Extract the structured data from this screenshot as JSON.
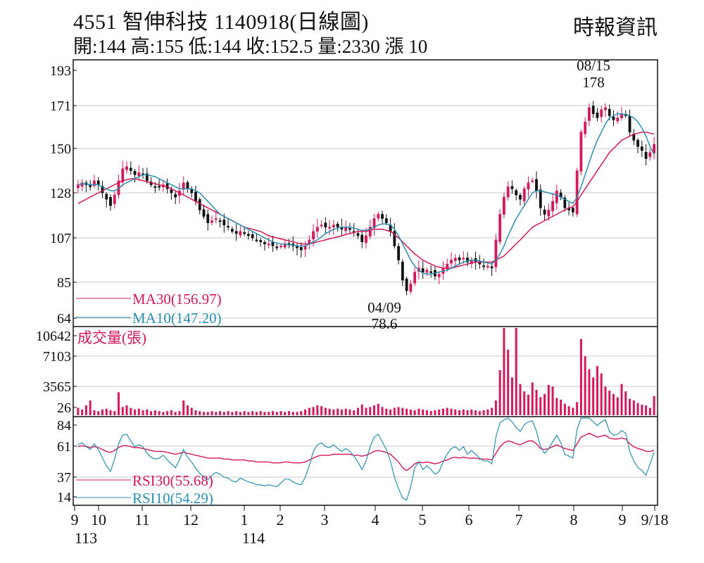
{
  "header": {
    "title": "4551  智伸科技 1140918(日線圖)",
    "info": "開:144 高:155 低:144 收:152.5 量:2330 漲 10",
    "source": "時報資訊"
  },
  "colors": {
    "up": "#d6185a",
    "down": "#111111",
    "ma30": "#d6185a",
    "ma10": "#2a8fb0",
    "volume": "#d6185a",
    "grid": "#c8c8c8"
  },
  "chart_data": [
    {
      "type": "candlestick",
      "yticks": [
        "193",
        "171",
        "150",
        "128",
        "107",
        "85",
        "64"
      ],
      "ylim": [
        64,
        193
      ],
      "legend": [
        {
          "name": "MA30(156.97)",
          "color": "#d6185a"
        },
        {
          "name": "MA10(147.20)",
          "color": "#2a8fb0"
        }
      ],
      "annotations": [
        {
          "date": "08/15",
          "value": "178"
        },
        {
          "date": "04/09",
          "value": "78.6"
        }
      ],
      "close_approx": [
        132,
        133,
        132,
        131,
        134,
        132,
        128,
        125,
        122,
        127,
        134,
        140,
        141,
        139,
        137,
        138,
        137,
        134,
        132,
        131,
        131,
        132,
        130,
        128,
        126,
        129,
        133,
        130,
        128,
        124,
        120,
        117,
        114,
        115,
        116,
        115,
        113,
        112,
        110,
        109,
        110,
        109,
        108,
        107,
        106,
        105,
        104,
        104,
        103,
        102,
        103,
        104,
        104,
        103,
        102,
        101,
        103,
        106,
        110,
        112,
        113,
        112,
        112,
        113,
        112,
        111,
        112,
        111,
        110,
        108,
        105,
        108,
        112,
        116,
        118,
        116,
        114,
        110,
        103,
        96,
        86,
        80,
        84,
        90,
        92,
        90,
        91,
        90,
        88,
        89,
        92,
        94,
        96,
        97,
        96,
        97,
        95,
        96,
        95,
        94,
        93,
        93,
        92,
        106,
        118,
        126,
        131,
        130,
        127,
        125,
        130,
        133,
        134,
        129,
        121,
        118,
        120,
        124,
        129,
        126,
        121,
        120,
        119,
        139,
        158,
        163,
        170,
        167,
        165,
        169,
        170,
        166,
        164,
        165,
        167,
        166,
        158,
        154,
        151,
        149,
        145,
        148,
        152
      ],
      "ma30_approx": [
        123,
        124,
        125,
        126,
        127,
        128,
        129,
        130,
        131,
        132,
        133,
        134,
        134.5,
        135,
        135,
        134.5,
        134,
        133.5,
        133,
        132.5,
        132,
        131.5,
        131,
        130,
        129,
        128,
        127,
        126,
        125,
        124,
        123,
        122,
        121,
        120,
        119,
        118,
        117,
        116,
        115,
        114,
        113,
        112,
        111.5,
        111,
        110.5,
        110,
        109,
        108,
        107.5,
        107,
        106.5,
        106,
        105.5,
        105,
        104.5,
        104,
        104,
        104,
        104.5,
        105,
        105.5,
        106,
        106.5,
        107,
        107.5,
        108,
        108.5,
        109,
        109.5,
        110,
        110,
        110,
        110.5,
        111,
        111,
        111,
        110.5,
        110,
        108.5,
        107,
        105,
        103,
        101,
        99,
        97.5,
        96,
        95,
        94,
        93,
        92.5,
        92,
        92,
        92,
        92.5,
        93,
        93.5,
        94,
        94.5,
        95,
        95,
        95,
        95,
        95,
        96,
        97,
        98,
        100,
        102,
        104,
        106,
        108,
        110,
        112,
        113,
        114,
        115,
        116,
        117,
        118,
        119,
        120,
        121,
        121.5,
        124,
        127,
        130,
        133,
        136,
        139,
        142,
        145,
        148,
        150,
        152,
        154,
        155,
        156,
        157,
        157.5,
        158,
        158,
        157.5,
        157
      ],
      "ma10_approx": [
        132,
        132.5,
        132.5,
        132,
        132,
        132,
        131,
        130,
        129,
        129,
        130,
        132,
        133,
        134,
        135,
        136,
        137,
        137,
        136.5,
        136,
        135,
        134,
        133,
        132,
        131,
        130,
        130,
        130,
        130,
        129,
        128,
        126,
        124,
        122,
        120,
        118,
        117,
        116,
        115,
        114,
        113,
        112,
        111,
        110,
        109,
        108,
        107,
        106,
        105,
        104.5,
        104,
        104,
        103.5,
        103.5,
        103,
        103,
        103,
        104,
        105,
        106,
        107.5,
        109,
        110,
        111,
        111.5,
        112,
        112,
        112,
        111.5,
        111,
        110.5,
        110.5,
        111,
        112,
        113,
        113.5,
        113.5,
        113,
        111,
        108,
        104,
        100,
        96,
        93,
        91,
        89.5,
        89,
        89,
        89.5,
        90,
        90.5,
        91,
        92,
        93,
        94,
        95,
        95.5,
        96,
        96,
        95.5,
        95,
        94.5,
        94,
        96,
        99,
        103,
        108,
        112,
        116,
        119,
        122,
        125,
        128,
        129,
        129,
        128.5,
        128,
        127.5,
        127,
        126,
        125,
        124,
        123,
        126,
        131,
        137,
        143,
        149,
        154,
        158,
        162,
        165,
        166,
        167,
        167,
        166.5,
        166,
        165,
        163,
        160,
        156,
        151,
        147
      ]
    },
    {
      "type": "bar",
      "title": "成交量(張)",
      "yticks": [
        "10642",
        "7103",
        "3565",
        "26"
      ],
      "ylim": [
        0,
        10642
      ],
      "values": [
        900,
        700,
        1200,
        1800,
        600,
        500,
        700,
        800,
        600,
        500,
        2800,
        1000,
        1200,
        900,
        700,
        800,
        600,
        700,
        500,
        600,
        500,
        400,
        500,
        600,
        400,
        500,
        1800,
        1200,
        900,
        600,
        500,
        400,
        400,
        500,
        400,
        500,
        400,
        500,
        400,
        500,
        400,
        500,
        400,
        500,
        400,
        500,
        400,
        400,
        500,
        400,
        500,
        400,
        500,
        400,
        400,
        500,
        700,
        900,
        1000,
        1200,
        1100,
        900,
        800,
        700,
        800,
        700,
        800,
        700,
        600,
        900,
        1300,
        900,
        1000,
        1200,
        1400,
        1000,
        800,
        700,
        900,
        1000,
        900,
        800,
        700,
        600,
        800,
        700,
        600,
        500,
        600,
        700,
        800,
        900,
        800,
        700,
        600,
        700,
        600,
        700,
        600,
        500,
        600,
        700,
        900,
        1800,
        5500,
        10642,
        8000,
        4600,
        10642,
        3800,
        2900,
        2500,
        4000,
        3100,
        2200,
        2600,
        3700,
        3500,
        2100,
        1900,
        1400,
        1100,
        900,
        1600,
        9300,
        7200,
        5600,
        4600,
        6000,
        5100,
        3500,
        3000,
        2600,
        2200,
        3800,
        2900,
        2000,
        1800,
        1500,
        1300,
        1200,
        900,
        2330
      ]
    },
    {
      "type": "line",
      "yticks": [
        "84",
        "61",
        "37",
        "14"
      ],
      "ylim": [
        0,
        90
      ],
      "legend": [
        {
          "name": "RSI30(55.68)",
          "color": "#d6185a"
        },
        {
          "name": "RSI10(54.29)",
          "color": "#2a8fb0"
        }
      ],
      "rsi30_approx": [
        60,
        61,
        60,
        59,
        60,
        59,
        57,
        55,
        54,
        56,
        59,
        61,
        61,
        60,
        59,
        59,
        58,
        57,
        56,
        55,
        55,
        55,
        54,
        53,
        52,
        53,
        54,
        53,
        52,
        51,
        50,
        49,
        48,
        48,
        48,
        48,
        47,
        47,
        46,
        46,
        46,
        46,
        45,
        45,
        44,
        44,
        44,
        44,
        43,
        43,
        43,
        44,
        44,
        43,
        43,
        43,
        44,
        46,
        48,
        50,
        51,
        51,
        51,
        52,
        52,
        52,
        52,
        52,
        51,
        51,
        50,
        51,
        53,
        55,
        56,
        55,
        54,
        52,
        48,
        44,
        38,
        35,
        38,
        42,
        44,
        43,
        44,
        43,
        42,
        43,
        45,
        46,
        48,
        49,
        48,
        49,
        48,
        48,
        48,
        47,
        47,
        47,
        46,
        53,
        60,
        64,
        66,
        65,
        63,
        62,
        64,
        66,
        66,
        63,
        58,
        57,
        58,
        60,
        62,
        60,
        58,
        57,
        56,
        63,
        70,
        72,
        74,
        72,
        70,
        71,
        72,
        69,
        68,
        68,
        69,
        68,
        63,
        60,
        58,
        57,
        55,
        55,
        56
      ],
      "rsi10_approx": [
        62,
        64,
        60,
        57,
        63,
        57,
        48,
        40,
        34,
        47,
        63,
        72,
        73,
        66,
        60,
        62,
        60,
        53,
        49,
        47,
        48,
        51,
        46,
        42,
        38,
        46,
        57,
        49,
        44,
        37,
        32,
        28,
        25,
        30,
        33,
        31,
        28,
        27,
        24,
        23,
        27,
        25,
        23,
        22,
        20,
        20,
        19,
        20,
        19,
        18,
        22,
        26,
        26,
        23,
        21,
        20,
        28,
        40,
        55,
        62,
        64,
        60,
        59,
        62,
        58,
        55,
        58,
        55,
        50,
        44,
        36,
        45,
        60,
        70,
        73,
        65,
        57,
        45,
        28,
        16,
        6,
        4,
        18,
        38,
        44,
        36,
        40,
        36,
        31,
        34,
        44,
        52,
        58,
        60,
        56,
        60,
        52,
        56,
        52,
        48,
        45,
        45,
        42,
        70,
        85,
        88,
        90,
        86,
        80,
        76,
        83,
        86,
        87,
        76,
        60,
        53,
        58,
        65,
        72,
        64,
        52,
        50,
        48,
        78,
        90,
        90,
        90,
        86,
        82,
        86,
        88,
        76,
        72,
        73,
        77,
        74,
        55,
        45,
        38,
        35,
        30,
        42,
        54
      ]
    }
  ],
  "xaxis": {
    "months": [
      "9",
      "10",
      "11",
      "12",
      "1",
      "2",
      "3",
      "4",
      "5",
      "6",
      "7",
      "8",
      "9",
      "9/18"
    ],
    "years": [
      "113",
      "114"
    ]
  }
}
